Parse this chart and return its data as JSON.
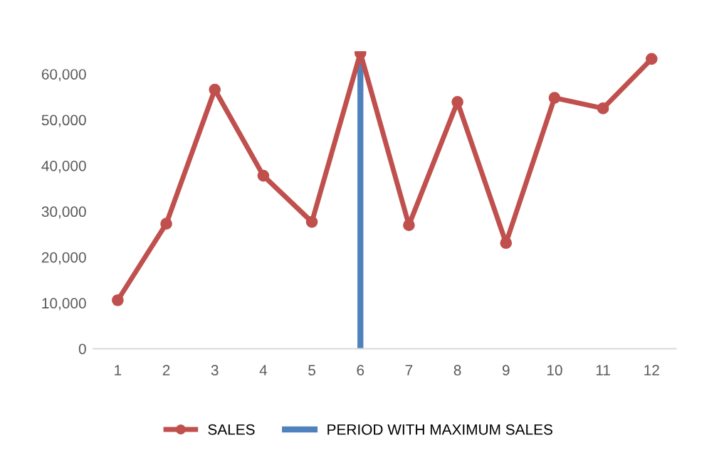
{
  "chart_data": {
    "type": "line",
    "x": [
      1,
      2,
      3,
      4,
      5,
      6,
      7,
      8,
      9,
      10,
      11,
      12
    ],
    "series": [
      {
        "name": "SALES",
        "color": "#c0504d",
        "values": [
          10600,
          27300,
          56600,
          37800,
          27700,
          64600,
          27000,
          53900,
          23100,
          54800,
          52500,
          63300
        ]
      }
    ],
    "ref_lines": [
      {
        "axis": "x",
        "value": 6,
        "label": "PERIOD WITH MAXIMUM SALES",
        "color": "#4f81bd"
      }
    ],
    "xlim": [
      0.5,
      12.5
    ],
    "xticks": [
      1,
      2,
      3,
      4,
      5,
      6,
      7,
      8,
      9,
      10,
      11,
      12
    ],
    "ylim": [
      0,
      65000
    ],
    "yticks": [
      0,
      {
        "value": 10000,
        "label": "10,000"
      },
      {
        "value": 20000,
        "label": "20,000"
      },
      {
        "value": 30000,
        "label": "30,000"
      },
      {
        "value": 40000,
        "label": "40,000"
      },
      {
        "value": 50000,
        "label": "50,000"
      },
      {
        "value": 60000,
        "label": "60,000"
      }
    ],
    "marker": "circle",
    "line_style": "solid",
    "legend": "bottom",
    "grid": false
  }
}
